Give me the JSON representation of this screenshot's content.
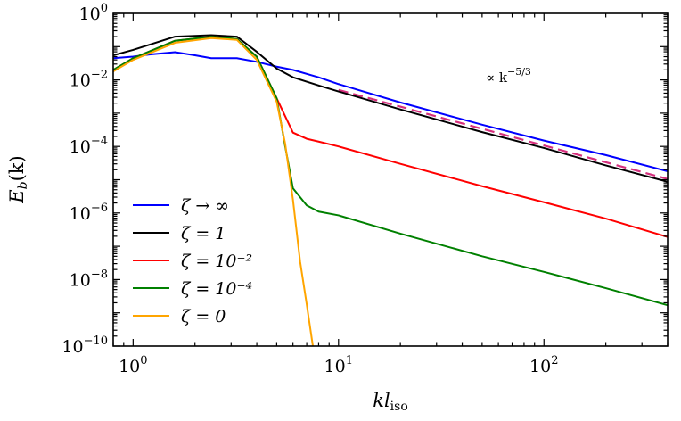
{
  "chart_data": {
    "type": "line",
    "title": "",
    "xlabel": "kl_iso",
    "xlabel_parts": {
      "main": "kl",
      "sub": "iso"
    },
    "ylabel": "E_b(k)",
    "ylabel_parts": {
      "main": "E",
      "sub": "b",
      "suffix": "(k)"
    },
    "x_scale": "log",
    "y_scale": "log",
    "xlim": [
      0.8,
      400
    ],
    "ylim": [
      1e-10,
      1
    ],
    "x_ticks": [
      {
        "value": 1,
        "base": "10",
        "exp": "0"
      },
      {
        "value": 10,
        "base": "10",
        "exp": "1"
      },
      {
        "value": 100,
        "base": "10",
        "exp": "2"
      }
    ],
    "y_ticks": [
      {
        "value": 1,
        "base": "10",
        "exp": "0"
      },
      {
        "value": 0.01,
        "base": "10",
        "exp": "−2"
      },
      {
        "value": 0.0001,
        "base": "10",
        "exp": "−4"
      },
      {
        "value": 1e-06,
        "base": "10",
        "exp": "−6"
      },
      {
        "value": 1e-08,
        "base": "10",
        "exp": "−8"
      },
      {
        "value": 1e-10,
        "base": "10",
        "exp": "−10"
      }
    ],
    "legend_position": "bottom-left",
    "series": [
      {
        "name": "ζ → ∞",
        "color": "#0000ff",
        "points": [
          [
            0.8,
            0.045
          ],
          [
            1.0,
            0.05
          ],
          [
            1.2,
            0.058
          ],
          [
            1.6,
            0.068
          ],
          [
            2.0,
            0.055
          ],
          [
            2.4,
            0.045
          ],
          [
            3.2,
            0.045
          ],
          [
            4.0,
            0.035
          ],
          [
            5.0,
            0.025
          ],
          [
            6.0,
            0.02
          ],
          [
            8.0,
            0.012
          ],
          [
            10.0,
            0.0075
          ],
          [
            20.0,
            0.0021
          ],
          [
            50.0,
            0.00045
          ],
          [
            100.0,
            0.00015
          ],
          [
            200.0,
            5.5e-05
          ],
          [
            400.0,
            1.8e-05
          ]
        ]
      },
      {
        "name": "ζ = 1",
        "color": "#000000",
        "points": [
          [
            0.8,
            0.055
          ],
          [
            1.0,
            0.08
          ],
          [
            1.6,
            0.2
          ],
          [
            2.4,
            0.22
          ],
          [
            3.2,
            0.2
          ],
          [
            4.0,
            0.07
          ],
          [
            5.0,
            0.022
          ],
          [
            6.0,
            0.012
          ],
          [
            8.0,
            0.0068
          ],
          [
            10.0,
            0.0045
          ],
          [
            20.0,
            0.0013
          ],
          [
            50.0,
            0.00027
          ],
          [
            100.0,
            9e-05
          ],
          [
            200.0,
            2.7e-05
          ],
          [
            400.0,
            8.7e-06
          ]
        ]
      },
      {
        "name": "ζ = 10⁻²",
        "color": "#ff0000",
        "points": [
          [
            0.8,
            0.02
          ],
          [
            1.0,
            0.045
          ],
          [
            1.6,
            0.15
          ],
          [
            2.4,
            0.2
          ],
          [
            3.2,
            0.17
          ],
          [
            4.0,
            0.05
          ],
          [
            5.0,
            0.0028
          ],
          [
            6.0,
            0.00026
          ],
          [
            7.0,
            0.00017
          ],
          [
            8.0,
            0.00014
          ],
          [
            10.0,
            0.0001
          ],
          [
            20.0,
            3e-05
          ],
          [
            50.0,
            6.4e-06
          ],
          [
            100.0,
            2.1e-06
          ],
          [
            200.0,
            6.8e-07
          ],
          [
            400.0,
            1.9e-07
          ]
        ]
      },
      {
        "name": "ζ = 10⁻⁴",
        "color": "#008000",
        "points": [
          [
            0.8,
            0.02
          ],
          [
            1.0,
            0.045
          ],
          [
            1.6,
            0.15
          ],
          [
            2.4,
            0.2
          ],
          [
            3.2,
            0.17
          ],
          [
            4.0,
            0.05
          ],
          [
            5.0,
            0.0028
          ],
          [
            5.5,
            0.0001
          ],
          [
            6.0,
            5.5e-06
          ],
          [
            7.0,
            1.7e-06
          ],
          [
            8.0,
            1.1e-06
          ],
          [
            10.0,
            8.5e-07
          ],
          [
            20.0,
            2.4e-07
          ],
          [
            50.0,
            5e-08
          ],
          [
            100.0,
            1.7e-08
          ],
          [
            200.0,
            5.5e-09
          ],
          [
            400.0,
            1.7e-09
          ]
        ]
      },
      {
        "name": "ζ = 0",
        "color": "#ffa500",
        "points": [
          [
            0.8,
            0.018
          ],
          [
            1.0,
            0.04
          ],
          [
            1.6,
            0.13
          ],
          [
            2.4,
            0.18
          ],
          [
            3.2,
            0.16
          ],
          [
            4.0,
            0.04
          ],
          [
            5.0,
            0.0022
          ],
          [
            5.5,
            0.00012
          ],
          [
            6.0,
            2.5e-06
          ],
          [
            6.5,
            3.5e-08
          ],
          [
            7.0,
            1.8e-09
          ],
          [
            7.5,
            1e-10
          ]
        ]
      }
    ],
    "reference_line": {
      "label_parts": {
        "prefix": "∝ k",
        "exp": "−5/3"
      },
      "color": "#d62f7d",
      "style": "dashed",
      "slope": "-5/3",
      "points": [
        [
          10.0,
          0.005
        ],
        [
          400.0,
          1.05e-05
        ]
      ]
    }
  }
}
